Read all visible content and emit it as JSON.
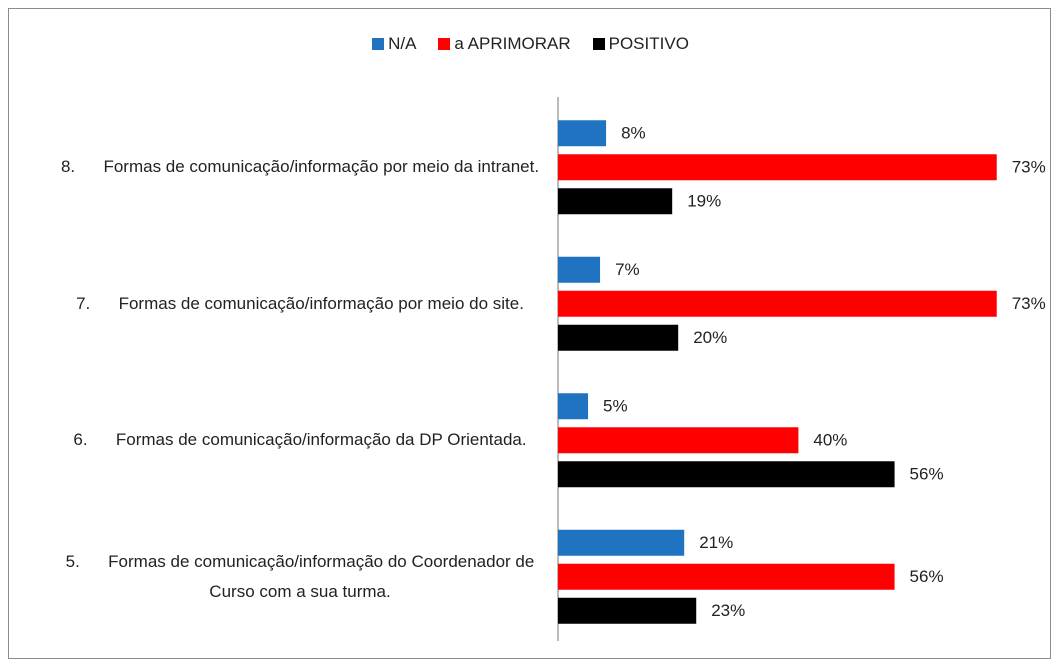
{
  "chart_data": {
    "type": "hbar",
    "categories": [
      "8.      Formas de comunicação/informação por meio da intranet.",
      "7.      Formas de comunicação/informação por meio do site.",
      "6.      Formas de comunicação/informação da DP Orientada.",
      "5.      Formas de comunicação/informação do Coordenador de Curso com a sua turma."
    ],
    "series": [
      {
        "name": "N/A",
        "color": "#1f73c0",
        "values": [
          8,
          7,
          5,
          21
        ],
        "value_labels": [
          "8%",
          "7%",
          "5%",
          "21%"
        ]
      },
      {
        "name": "a APRIMORAR",
        "color": "#ff0000",
        "values": [
          73,
          73,
          40,
          56
        ],
        "value_labels": [
          "73%",
          "73%",
          "40%",
          "56%"
        ]
      },
      {
        "name": "POSITIVO",
        "color": "#000000",
        "values": [
          19,
          20,
          56,
          23
        ],
        "value_labels": [
          "19%",
          "20%",
          "56%",
          "23%"
        ]
      }
    ],
    "legend": "top"
  }
}
